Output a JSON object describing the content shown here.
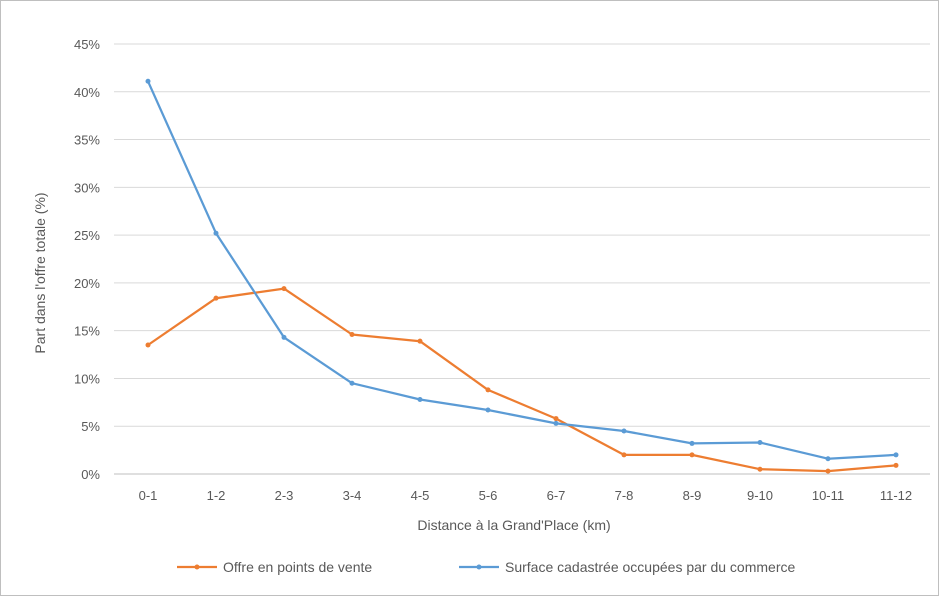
{
  "chart_data": {
    "type": "line",
    "title": "",
    "xlabel": "Distance à la Grand'Place (km)",
    "ylabel": "Part dans l'offre totale (%)",
    "ylim": [
      0,
      45
    ],
    "ytick_step": 5,
    "ytick_labels": [
      "0%",
      "5%",
      "10%",
      "15%",
      "20%",
      "25%",
      "30%",
      "35%",
      "40%",
      "45%"
    ],
    "grid": true,
    "legend_position": "bottom",
    "categories": [
      "0-1",
      "1-2",
      "2-3",
      "3-4",
      "4-5",
      "5-6",
      "6-7",
      "7-8",
      "8-9",
      "9-10",
      "10-11",
      "11-12"
    ],
    "series": [
      {
        "name": "Offre en points de vente",
        "color": "#ed7d31",
        "values": [
          13.5,
          18.4,
          19.4,
          14.6,
          13.9,
          8.8,
          5.8,
          2.0,
          2.0,
          0.5,
          0.3,
          0.9
        ]
      },
      {
        "name": "Surface cadastrée occupées par du commerce",
        "color": "#5b9bd5",
        "values": [
          41.1,
          25.2,
          14.3,
          9.5,
          7.8,
          6.7,
          5.3,
          4.5,
          3.2,
          3.3,
          1.6,
          2.0
        ]
      }
    ]
  }
}
